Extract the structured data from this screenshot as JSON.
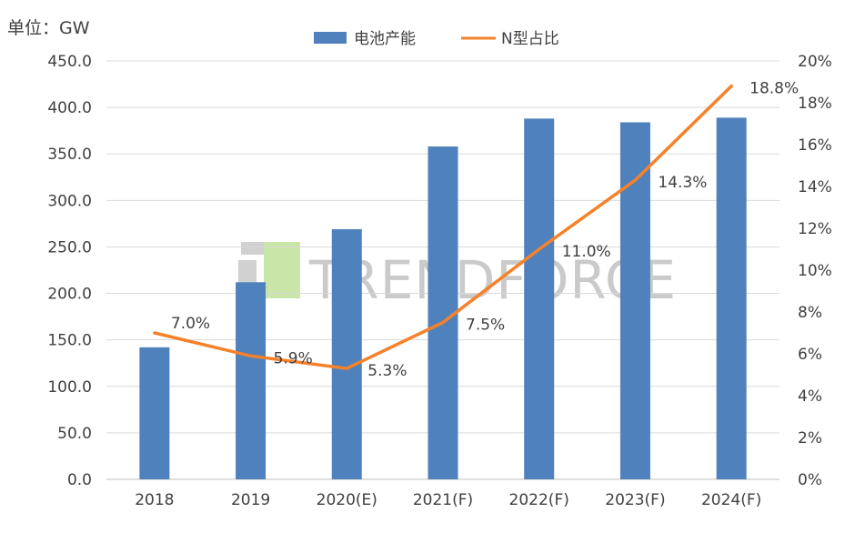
{
  "unit_label": "单位：GW",
  "watermark": "TRENDFORCE",
  "chart_data": {
    "type": "bar",
    "categories": [
      "2018",
      "2019",
      "2020(E)",
      "2021(F)",
      "2022(F)",
      "2023(F)",
      "2024(F)"
    ],
    "series": [
      {
        "name": "电池产能",
        "type": "bar",
        "axis": "left",
        "color": "#4f81bd",
        "values": [
          142,
          212,
          269,
          358,
          388,
          384,
          389
        ]
      },
      {
        "name": "N型占比",
        "type": "line",
        "axis": "right",
        "color": "#f5822b",
        "values": [
          7.0,
          5.9,
          5.3,
          7.5,
          11.0,
          14.3,
          18.8
        ],
        "labels": [
          "7.0%",
          "5.9%",
          "5.3%",
          "7.5%",
          "11.0%",
          "14.3%",
          "18.8%"
        ]
      }
    ],
    "y_left": {
      "min": 0,
      "max": 450,
      "ticks": [
        "0.0",
        "50.0",
        "100.0",
        "150.0",
        "200.0",
        "250.0",
        "300.0",
        "350.0",
        "400.0",
        "450.0"
      ]
    },
    "y_right": {
      "min": 0,
      "max": 20,
      "ticks": [
        "0%",
        "2%",
        "4%",
        "6%",
        "8%",
        "10%",
        "12%",
        "14%",
        "16%",
        "18%",
        "20%"
      ]
    },
    "grid": true,
    "legend": "top-center"
  }
}
